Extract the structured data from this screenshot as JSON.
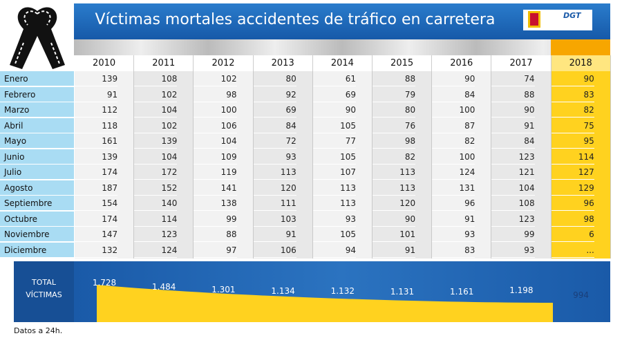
{
  "header": {
    "title": "Víctimas mortales accidentes de tráfico en carretera",
    "logo": "DGT"
  },
  "table": {
    "columns": [
      "2010",
      "2011",
      "2012",
      "2013",
      "2014",
      "2015",
      "2016",
      "2017",
      "2018"
    ],
    "rows": [
      [
        "Enero",
        "139",
        "108",
        "102",
        "80",
        "61",
        "88",
        "90",
        "74",
        "90"
      ],
      [
        "Febrero",
        "91",
        "102",
        "98",
        "92",
        "69",
        "79",
        "84",
        "88",
        "83"
      ],
      [
        "Marzo",
        "112",
        "104",
        "100",
        "69",
        "90",
        "80",
        "100",
        "90",
        "82"
      ],
      [
        "Abril",
        "118",
        "102",
        "106",
        "84",
        "105",
        "76",
        "87",
        "91",
        "75"
      ],
      [
        "Mayo",
        "161",
        "139",
        "104",
        "72",
        "77",
        "98",
        "82",
        "84",
        "95"
      ],
      [
        "Junio",
        "139",
        "104",
        "109",
        "93",
        "105",
        "82",
        "100",
        "123",
        "114"
      ],
      [
        "Julio",
        "174",
        "172",
        "119",
        "113",
        "107",
        "113",
        "124",
        "121",
        "127"
      ],
      [
        "Agosto",
        "187",
        "152",
        "141",
        "120",
        "113",
        "113",
        "131",
        "104",
        "129"
      ],
      [
        "Septiembre",
        "154",
        "140",
        "138",
        "111",
        "113",
        "120",
        "96",
        "108",
        "96"
      ],
      [
        "Octubre",
        "174",
        "114",
        "99",
        "103",
        "93",
        "90",
        "91",
        "123",
        "98"
      ],
      [
        "Noviembre",
        "147",
        "123",
        "88",
        "91",
        "105",
        "101",
        "93",
        "99",
        "6"
      ],
      [
        "Diciembre",
        "132",
        "124",
        "97",
        "106",
        "94",
        "91",
        "83",
        "93",
        "..."
      ]
    ],
    "total_label": "TOTAL VÍCTIMAS",
    "totals": [
      "1.728",
      "1.484",
      "1.301",
      "1.134",
      "1.132",
      "1.131",
      "1.161",
      "1.198",
      "994"
    ]
  },
  "footnote": "Datos a 24h."
}
